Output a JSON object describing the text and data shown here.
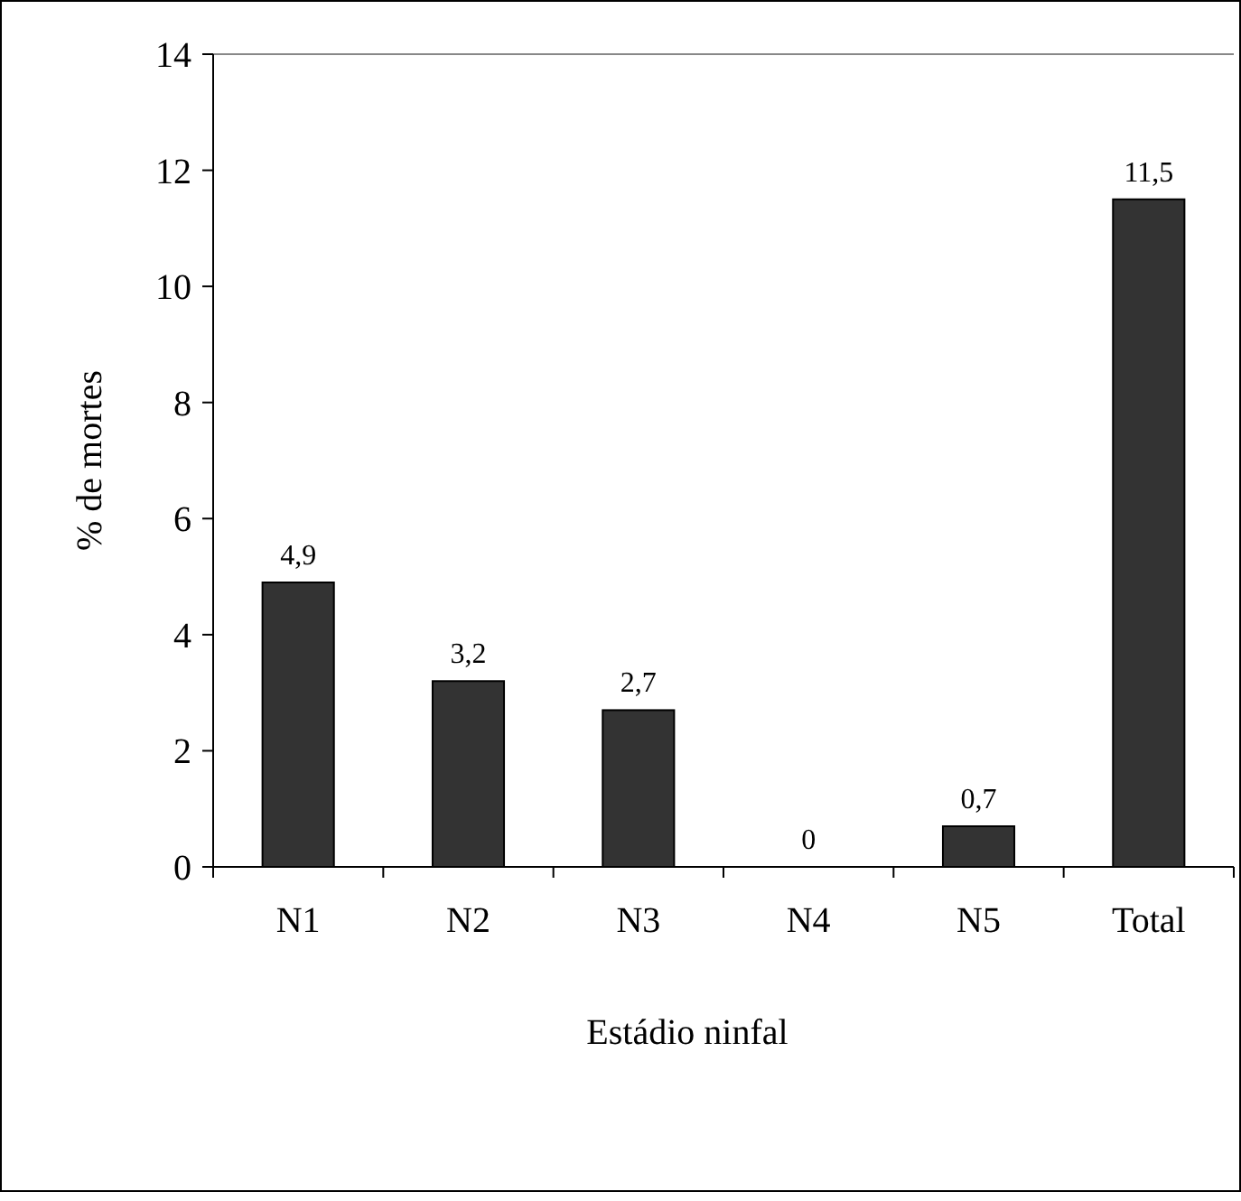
{
  "chart_data": {
    "type": "bar",
    "xlabel": "Estádio ninfal",
    "ylabel": "% de mortes",
    "categories": [
      "N1",
      "N2",
      "N3",
      "N4",
      "N5",
      "Total"
    ],
    "values": [
      4.9,
      3.2,
      2.7,
      0,
      0.7,
      11.5
    ],
    "value_labels": [
      "4,9",
      "3,2",
      "2,7",
      "0",
      "0,7",
      "11,5"
    ],
    "color": "#333333",
    "ylim": [
      0,
      14
    ],
    "yticks": [
      0,
      2,
      4,
      6,
      8,
      10,
      12,
      14
    ],
    "grid": false
  }
}
